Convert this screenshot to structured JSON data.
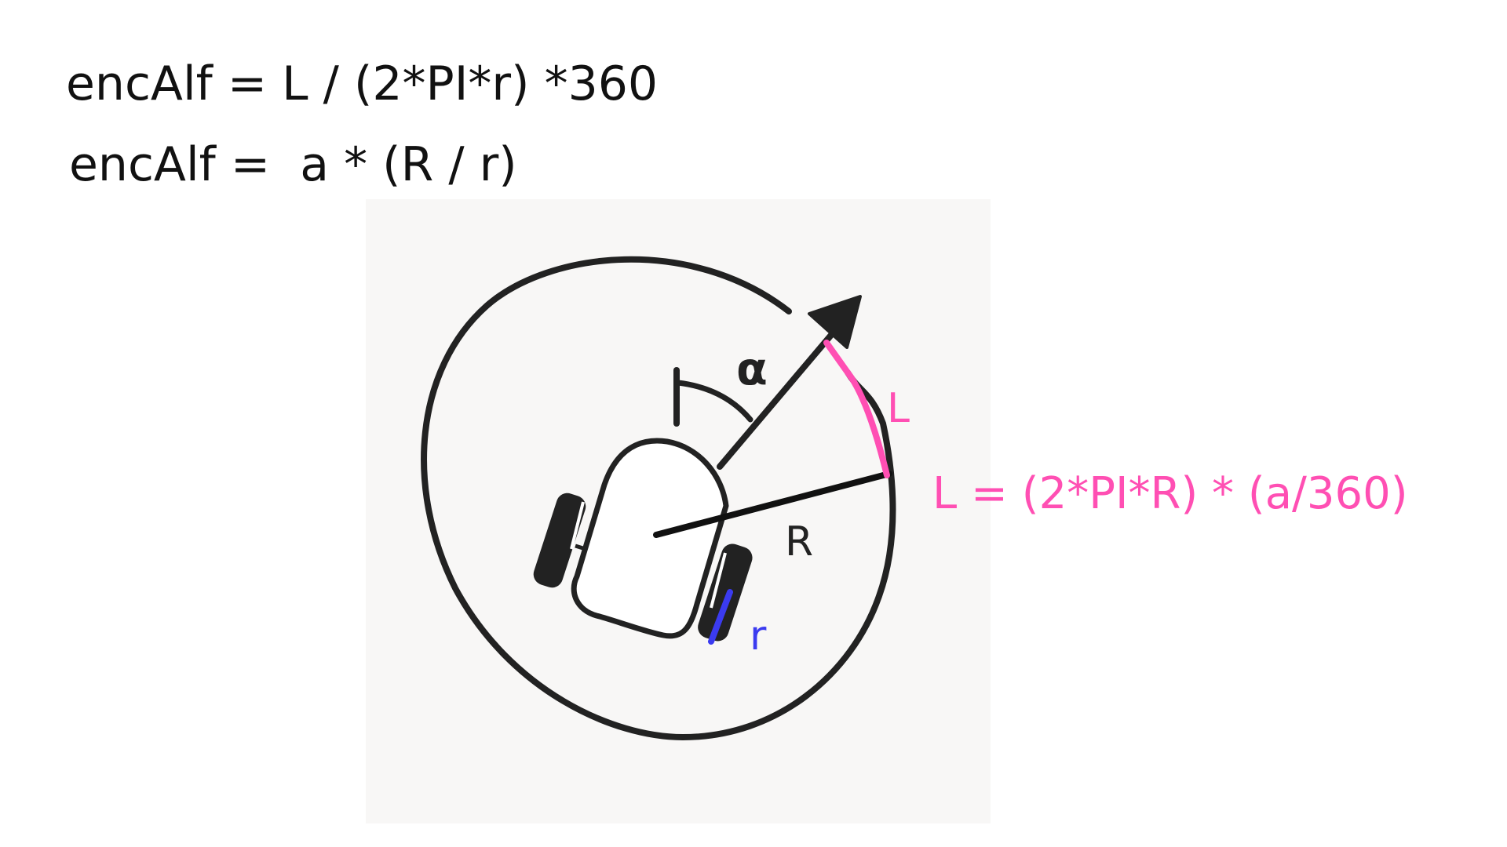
{
  "formulas": {
    "enc_from_length": "encAlf = L / (2*PI*r) *360",
    "enc_from_angle": "encAlf =  a * (R / r)"
  },
  "diagram": {
    "labels": {
      "angle": "α",
      "arc_length": "L",
      "turn_radius": "R",
      "wheel_radius": "r",
      "arc_formula": "L = (2*PI*R) * (a/360)"
    },
    "colors": {
      "ink": "#222222",
      "arc_highlight": "#ff4fb3",
      "wheel_radius": "#3b3bf0",
      "panel_background": "#f8f7f6"
    }
  }
}
